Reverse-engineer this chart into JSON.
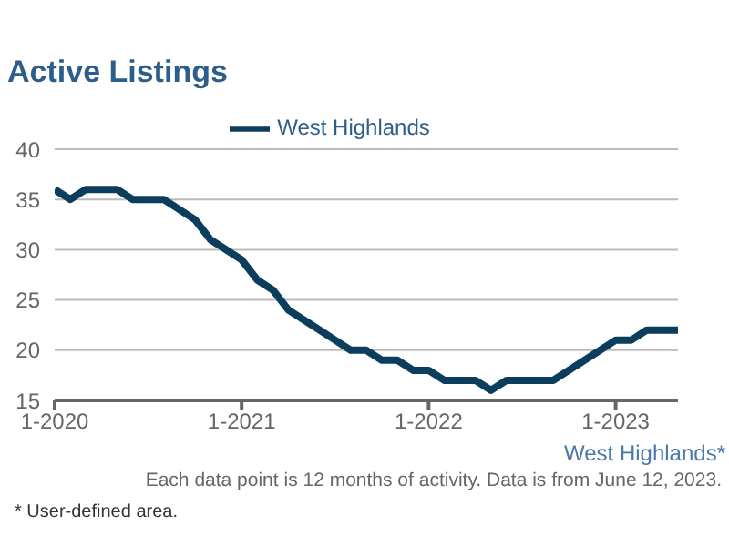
{
  "chart_data": {
    "type": "line",
    "title": "Active Listings",
    "x": [
      "2020-01",
      "2020-02",
      "2020-03",
      "2020-04",
      "2020-05",
      "2020-06",
      "2020-07",
      "2020-08",
      "2020-09",
      "2020-10",
      "2020-11",
      "2020-12",
      "2021-01",
      "2021-02",
      "2021-03",
      "2021-04",
      "2021-05",
      "2021-06",
      "2021-07",
      "2021-08",
      "2021-09",
      "2021-10",
      "2021-11",
      "2021-12",
      "2022-01",
      "2022-02",
      "2022-03",
      "2022-04",
      "2022-05",
      "2022-06",
      "2022-07",
      "2022-08",
      "2022-09",
      "2022-10",
      "2022-11",
      "2022-12",
      "2023-01",
      "2023-02",
      "2023-03",
      "2023-04",
      "2023-05"
    ],
    "series": [
      {
        "name": "West Highlands",
        "color": "#0b3d5c",
        "values": [
          36,
          35,
          36,
          36,
          36,
          35,
          35,
          35,
          34,
          33,
          31,
          30,
          29,
          27,
          26,
          24,
          23,
          22,
          21,
          20,
          20,
          19,
          19,
          18,
          18,
          17,
          17,
          17,
          16,
          17,
          17,
          17,
          17,
          18,
          19,
          20,
          21,
          21,
          22,
          22,
          22
        ]
      }
    ],
    "xlim": [
      "2020-01",
      "2023-05"
    ],
    "xticks": [
      {
        "value": "2020-01",
        "label": "1-2020"
      },
      {
        "value": "2021-01",
        "label": "1-2021"
      },
      {
        "value": "2022-01",
        "label": "1-2022"
      },
      {
        "value": "2023-01",
        "label": "1-2023"
      }
    ],
    "ylim": [
      15,
      40
    ],
    "yticks": [
      15,
      20,
      25,
      30,
      35,
      40
    ],
    "grid": "y",
    "legend": "top",
    "marker": "none",
    "line_style": "solid",
    "annotations": [
      "West Highlands*",
      "Each data point is 12 months of activity. Data is from June 12, 2023.",
      "* User-defined area."
    ]
  }
}
